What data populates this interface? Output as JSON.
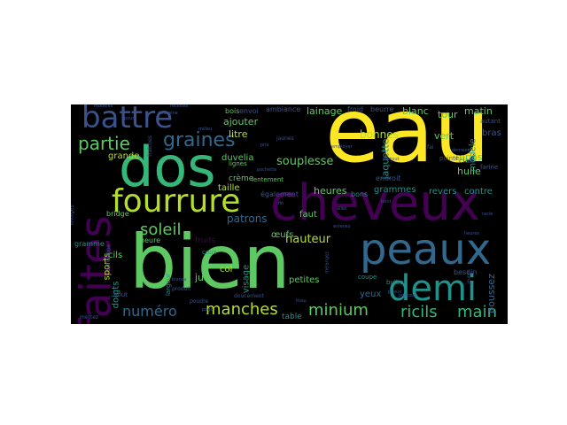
{
  "wordcloud": {
    "background": "#000000",
    "palette": [
      "#fde725",
      "#440154",
      "#3b528b",
      "#21918c",
      "#5ec962",
      "#b5de2b",
      "#31688e",
      "#35b779"
    ],
    "words": [
      {
        "text": "eau",
        "color": "#fde725"
      },
      {
        "text": "bien",
        "color": "#5ec962"
      },
      {
        "text": "cheveux",
        "color": "#440154"
      },
      {
        "text": "dos",
        "color": "#35b779"
      },
      {
        "text": "fourrure",
        "color": "#b5de2b"
      },
      {
        "text": "peaux",
        "color": "#31688e"
      },
      {
        "text": "faites",
        "color": "#440154"
      },
      {
        "text": "demi",
        "color": "#21918c"
      },
      {
        "text": "battre",
        "color": "#3b528b"
      },
      {
        "text": "graines",
        "color": "#31688e"
      },
      {
        "text": "partie",
        "color": "#5ec962"
      },
      {
        "text": "soleil",
        "color": "#5ec962"
      },
      {
        "text": "manches",
        "color": "#b5de2b"
      },
      {
        "text": "numéro",
        "color": "#31688e"
      },
      {
        "text": "minium",
        "color": "#5ec962"
      },
      {
        "text": "ricils",
        "color": "#35b779"
      },
      {
        "text": "main",
        "color": "#35b779"
      },
      {
        "text": "souplesse",
        "color": "#5ec962"
      },
      {
        "text": "hauteur",
        "color": "#b5de2b"
      },
      {
        "text": "patrons",
        "color": "#31688e"
      },
      {
        "text": "bonnes",
        "color": "#b5de2b"
      },
      {
        "text": "lainage",
        "color": "#5ec962"
      },
      {
        "text": "blanc",
        "color": "#5ec962"
      },
      {
        "text": "vert",
        "color": "#5ec962"
      },
      {
        "text": "repas",
        "color": "#5ec962"
      },
      {
        "text": "huile",
        "color": "#5ec962"
      },
      {
        "text": "jaquette",
        "color": "#21918c"
      },
      {
        "text": "heures",
        "color": "#5ec962"
      },
      {
        "text": "grammes",
        "color": "#21918c"
      },
      {
        "text": "revers",
        "color": "#21918c"
      },
      {
        "text": "contre",
        "color": "#21918c"
      },
      {
        "text": "modèle",
        "color": "#21918c"
      },
      {
        "text": "tour",
        "color": "#5ec962"
      },
      {
        "text": "matin",
        "color": "#5ec962"
      },
      {
        "text": "poussez",
        "color": "#31688e"
      },
      {
        "text": "ajouter",
        "color": "#5ec962"
      },
      {
        "text": "litre",
        "color": "#b5de2b"
      },
      {
        "text": "duvelia",
        "color": "#5ec962"
      },
      {
        "text": "grande",
        "color": "#b5de2b"
      },
      {
        "text": "taille",
        "color": "#b5de2b"
      },
      {
        "text": "faut",
        "color": "#5ec962"
      },
      {
        "text": "œufs",
        "color": "#5ec962"
      },
      {
        "text": "jus",
        "color": "#5ec962"
      },
      {
        "text": "col",
        "color": "#b5de2b"
      },
      {
        "text": "petites",
        "color": "#5ec962"
      },
      {
        "text": "yeux",
        "color": "#31688e"
      },
      {
        "text": "table",
        "color": "#21918c"
      },
      {
        "text": "sports",
        "color": "#b5de2b"
      },
      {
        "text": "cils",
        "color": "#5ec962"
      },
      {
        "text": "doigts",
        "color": "#21918c"
      },
      {
        "text": "visage",
        "color": "#21918c"
      },
      {
        "text": "crème",
        "color": "#5ec962"
      },
      {
        "text": "fruits",
        "color": "#440154"
      },
      {
        "text": "bras",
        "color": "#3b528b"
      },
      {
        "text": "bons",
        "color": "#21918c"
      },
      {
        "text": "endroit",
        "color": "#3b528b"
      },
      {
        "text": "bois",
        "color": "#5ec962"
      },
      {
        "text": "envoi",
        "color": "#3b528b"
      },
      {
        "text": "ambiance",
        "color": "#3b528b"
      },
      {
        "text": "froid",
        "color": "#3b528b"
      },
      {
        "text": "beurre",
        "color": "#3b528b"
      },
      {
        "text": "pointe",
        "color": "#3b528b"
      },
      {
        "text": "heure",
        "color": "#5ec962"
      },
      {
        "text": "lignes",
        "color": "#5ec962"
      },
      {
        "text": "lentement",
        "color": "#5ec962"
      },
      {
        "text": "également",
        "color": "#3b528b"
      },
      {
        "text": "besoin",
        "color": "#3b528b"
      },
      {
        "text": "clair",
        "color": "#3b528b"
      },
      {
        "text": "farine",
        "color": "#3b528b"
      },
      {
        "text": "autant",
        "color": "#3b528b"
      },
      {
        "text": "bridge",
        "color": "#5ec962"
      },
      {
        "text": "gramme",
        "color": "#21918c"
      },
      {
        "text": "largeur",
        "color": "#21918c"
      },
      {
        "text": "ceux",
        "color": "#21918c"
      },
      {
        "text": "coupe",
        "color": "#21918c"
      },
      {
        "text": "bulbe",
        "color": "#21918c"
      },
      {
        "text": "poudre",
        "color": "#3b528b"
      },
      {
        "text": "mettez",
        "color": "#3b528b"
      },
      {
        "text": "bout",
        "color": "#3b528b"
      },
      {
        "text": "doucement",
        "color": "#3b528b"
      },
      {
        "text": "produit",
        "color": "#3b528b"
      },
      {
        "text": "milieu",
        "color": "#3b528b"
      },
      {
        "text": "modèles",
        "color": "#3b528b"
      },
      {
        "text": "pochette",
        "color": "#3b528b"
      },
      {
        "text": "jaunes",
        "color": "#3b528b"
      },
      {
        "text": "fraîches",
        "color": "#3b528b"
      },
      {
        "text": "brillantine",
        "color": "#3b528b"
      },
      {
        "text": "lavages",
        "color": "#3b528b"
      },
      {
        "text": "fai",
        "color": "#3b528b"
      },
      {
        "text": "prix",
        "color": "#3b528b"
      },
      {
        "text": "denrées",
        "color": "#3b528b"
      },
      {
        "text": "employer",
        "color": "#3b528b"
      },
      {
        "text": "pileux",
        "color": "#3b528b"
      },
      {
        "text": "page",
        "color": "#3b528b"
      },
      {
        "text": "blanca",
        "color": "#3b528b"
      },
      {
        "text": "jeunes",
        "color": "#3b528b"
      },
      {
        "text": "racle",
        "color": "#3b528b"
      },
      {
        "text": "heures",
        "color": "#3b528b"
      },
      {
        "text": "ailes",
        "color": "#3b528b"
      },
      {
        "text": "enlevez",
        "color": "#3b528b"
      },
      {
        "text": "ponceau",
        "color": "#3b528b"
      },
      {
        "text": "mélangez",
        "color": "#3b528b"
      },
      {
        "text": "partout",
        "color": "#3b528b"
      },
      {
        "text": "douzaine",
        "color": "#3b528b"
      },
      {
        "text": "recettes",
        "color": "#3b528b"
      },
      {
        "text": "fin",
        "color": "#3b528b"
      },
      {
        "text": "teint",
        "color": "#3b528b"
      },
      {
        "text": "pour",
        "color": "#3b528b"
      },
      {
        "text": "tissu",
        "color": "#3b528b"
      }
    ]
  }
}
